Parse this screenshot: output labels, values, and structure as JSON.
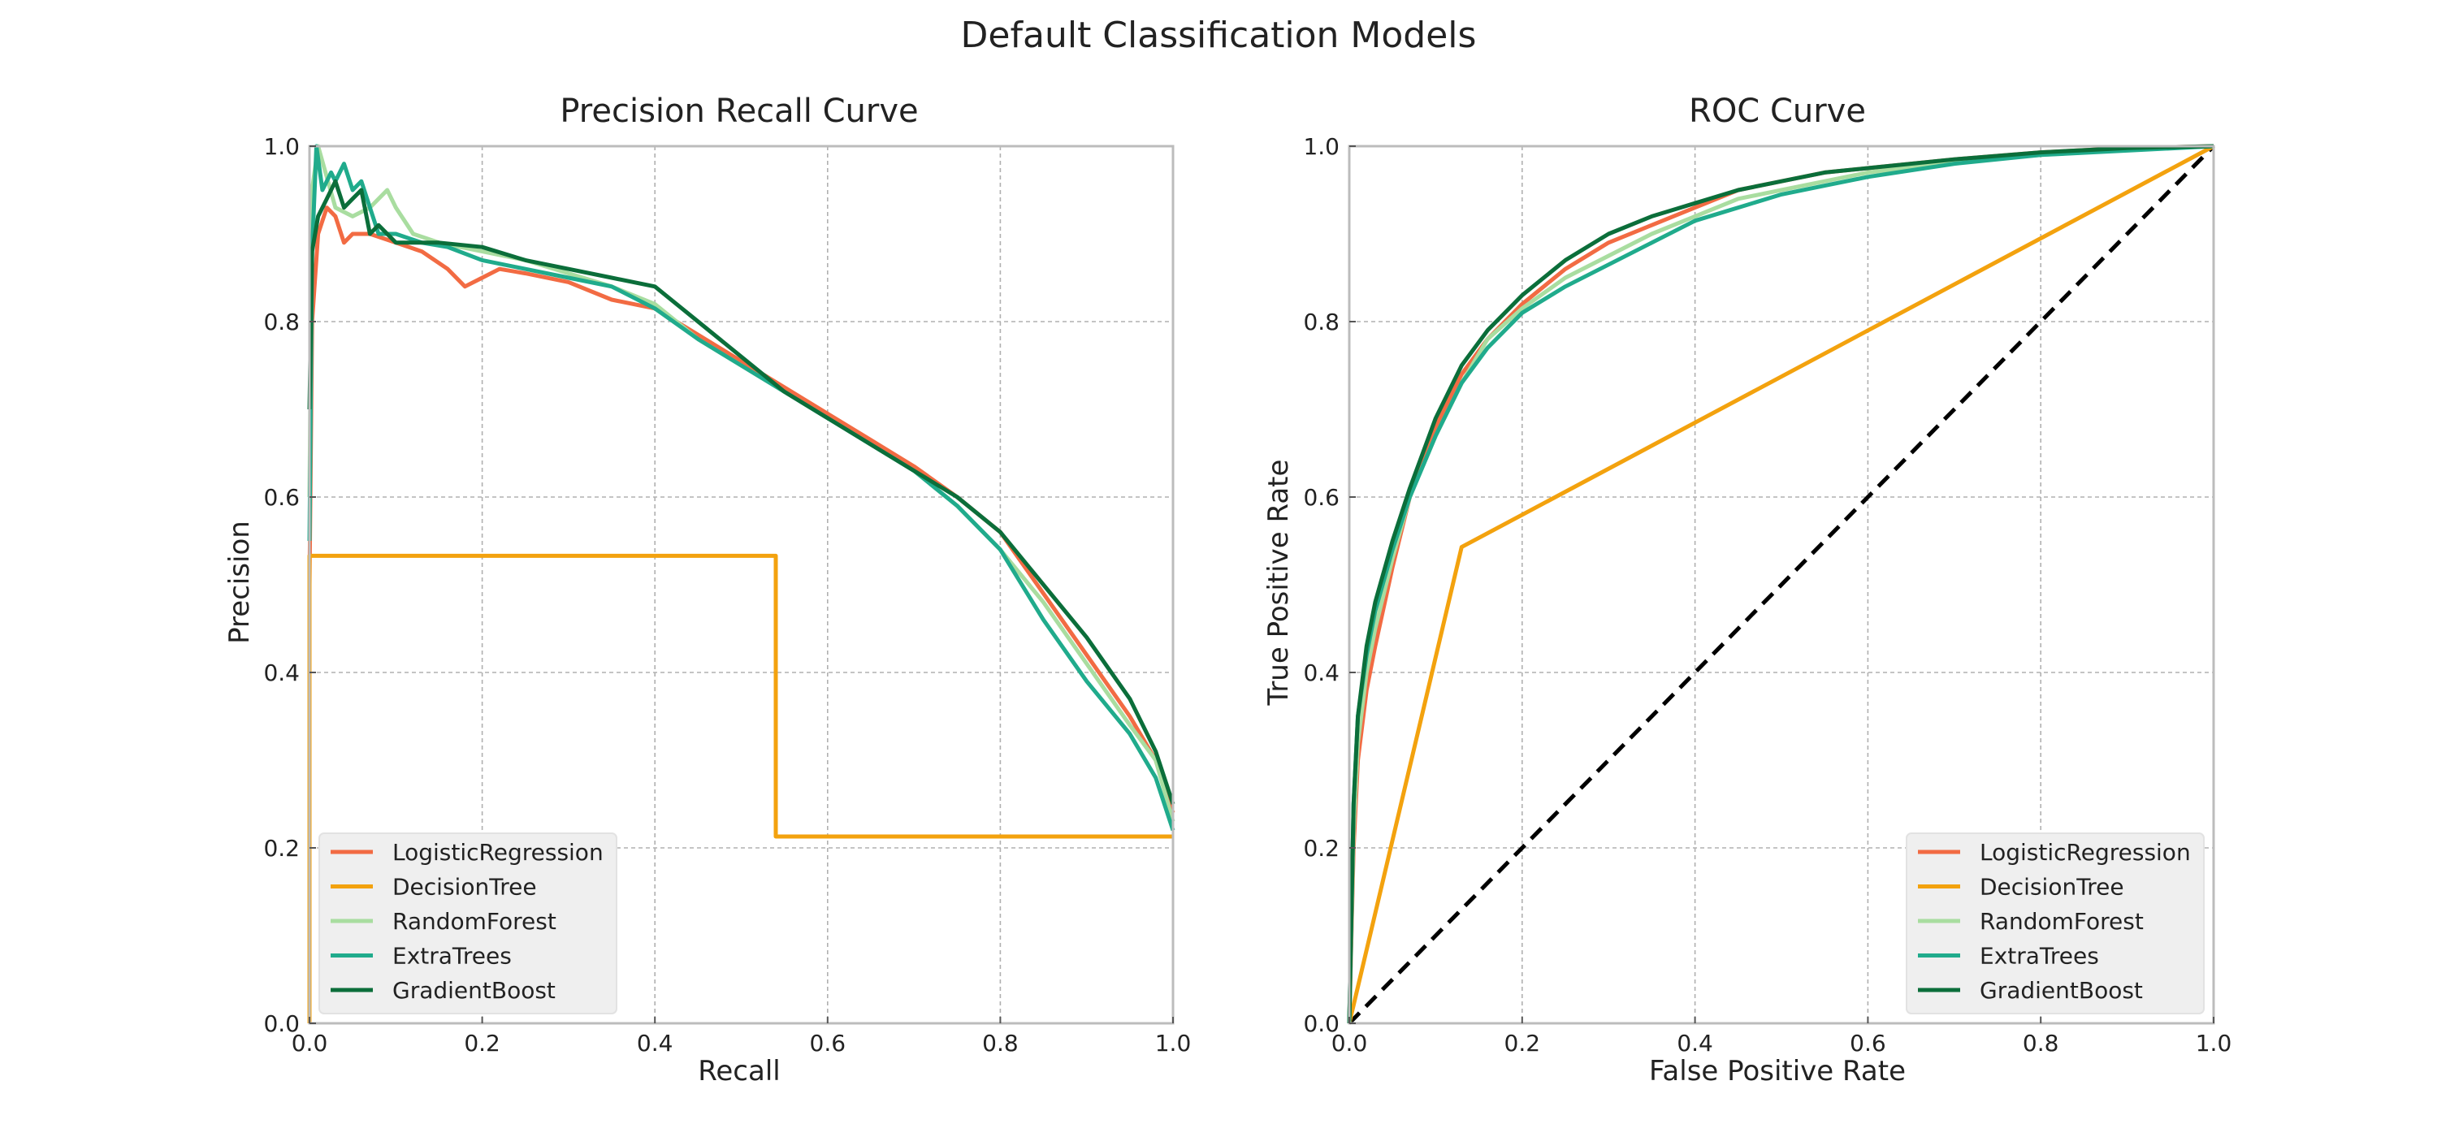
{
  "figure": {
    "title": "Default Classification Models"
  },
  "colors": {
    "LogisticRegression": "#f26b43",
    "DecisionTree": "#f3a20e",
    "RandomForest": "#a9dda0",
    "ExtraTrees": "#20ab8c",
    "GradientBoost": "#0b6e3a",
    "chance": "#000000"
  },
  "chart_data": [
    {
      "type": "line",
      "title": "Precision Recall Curve",
      "xlabel": "Recall",
      "ylabel": "Precision",
      "xlim": [
        0,
        1
      ],
      "ylim": [
        0,
        1
      ],
      "xticks": [
        "0.0",
        "0.2",
        "0.4",
        "0.6",
        "0.8",
        "1.0"
      ],
      "yticks": [
        "0.0",
        "0.2",
        "0.4",
        "0.6",
        "0.8",
        "1.0"
      ],
      "grid": true,
      "legend_position": "bottom-left",
      "series": [
        {
          "name": "LogisticRegression",
          "x": [
            0,
            0.003,
            0.01,
            0.02,
            0.03,
            0.04,
            0.05,
            0.07,
            0.1,
            0.13,
            0.16,
            0.18,
            0.2,
            0.22,
            0.25,
            0.3,
            0.35,
            0.4,
            0.45,
            0.5,
            0.55,
            0.6,
            0.65,
            0.7,
            0.75,
            0.8,
            0.85,
            0.9,
            0.95,
            0.98,
            1.0
          ],
          "y": [
            0.5,
            0.8,
            0.9,
            0.93,
            0.92,
            0.89,
            0.9,
            0.9,
            0.89,
            0.88,
            0.86,
            0.84,
            0.85,
            0.86,
            0.855,
            0.845,
            0.825,
            0.815,
            0.785,
            0.755,
            0.725,
            0.695,
            0.665,
            0.635,
            0.6,
            0.56,
            0.49,
            0.42,
            0.35,
            0.3,
            0.24
          ]
        },
        {
          "name": "DecisionTree",
          "x": [
            0,
            0,
            0.54,
            0.54,
            1.0,
            1.0
          ],
          "y": [
            0.0,
            0.533,
            0.533,
            0.213,
            0.213,
            0.213
          ]
        },
        {
          "name": "RandomForest",
          "x": [
            0,
            0.003,
            0.01,
            0.03,
            0.05,
            0.07,
            0.09,
            0.1,
            0.12,
            0.15,
            0.2,
            0.25,
            0.3,
            0.35,
            0.4,
            0.45,
            0.5,
            0.55,
            0.6,
            0.65,
            0.7,
            0.75,
            0.8,
            0.85,
            0.9,
            0.95,
            0.98,
            1.0
          ],
          "y": [
            0.6,
            0.95,
            1.0,
            0.93,
            0.92,
            0.93,
            0.95,
            0.93,
            0.9,
            0.89,
            0.88,
            0.87,
            0.855,
            0.84,
            0.82,
            0.78,
            0.75,
            0.72,
            0.69,
            0.66,
            0.63,
            0.59,
            0.54,
            0.48,
            0.41,
            0.34,
            0.3,
            0.23
          ]
        },
        {
          "name": "ExtraTrees",
          "x": [
            0,
            0.003,
            0.008,
            0.015,
            0.025,
            0.03,
            0.04,
            0.05,
            0.06,
            0.08,
            0.1,
            0.13,
            0.16,
            0.2,
            0.25,
            0.3,
            0.35,
            0.4,
            0.45,
            0.5,
            0.55,
            0.6,
            0.65,
            0.7,
            0.75,
            0.8,
            0.85,
            0.9,
            0.95,
            0.98,
            1.0
          ],
          "y": [
            0.55,
            0.88,
            1.0,
            0.95,
            0.97,
            0.96,
            0.98,
            0.95,
            0.96,
            0.9,
            0.9,
            0.89,
            0.885,
            0.87,
            0.86,
            0.85,
            0.84,
            0.815,
            0.78,
            0.75,
            0.72,
            0.69,
            0.66,
            0.63,
            0.59,
            0.54,
            0.46,
            0.39,
            0.33,
            0.28,
            0.22
          ]
        },
        {
          "name": "GradientBoost",
          "x": [
            0,
            0.003,
            0.01,
            0.02,
            0.03,
            0.04,
            0.05,
            0.06,
            0.07,
            0.08,
            0.1,
            0.15,
            0.2,
            0.25,
            0.3,
            0.35,
            0.4,
            0.45,
            0.5,
            0.55,
            0.6,
            0.65,
            0.7,
            0.75,
            0.8,
            0.85,
            0.9,
            0.95,
            0.98,
            1.0
          ],
          "y": [
            0.7,
            0.88,
            0.92,
            0.94,
            0.96,
            0.93,
            0.94,
            0.95,
            0.9,
            0.91,
            0.89,
            0.89,
            0.885,
            0.87,
            0.86,
            0.85,
            0.84,
            0.8,
            0.76,
            0.72,
            0.69,
            0.66,
            0.63,
            0.6,
            0.56,
            0.5,
            0.44,
            0.37,
            0.31,
            0.25
          ]
        }
      ]
    },
    {
      "type": "line",
      "title": "ROC Curve",
      "xlabel": "False Positive Rate",
      "ylabel": "True Positive Rate",
      "xlim": [
        0,
        1
      ],
      "ylim": [
        0,
        1
      ],
      "xticks": [
        "0.0",
        "0.2",
        "0.4",
        "0.6",
        "0.8",
        "1.0"
      ],
      "yticks": [
        "0.0",
        "0.2",
        "0.4",
        "0.6",
        "0.8",
        "1.0"
      ],
      "grid": true,
      "legend_position": "bottom-right",
      "series": [
        {
          "name": "LogisticRegression",
          "x": [
            0,
            0.005,
            0.01,
            0.02,
            0.03,
            0.05,
            0.07,
            0.1,
            0.13,
            0.16,
            0.2,
            0.25,
            0.3,
            0.35,
            0.4,
            0.45,
            0.5,
            0.55,
            0.6,
            0.7,
            0.8,
            0.9,
            1.0
          ],
          "y": [
            0,
            0.2,
            0.3,
            0.38,
            0.43,
            0.52,
            0.6,
            0.68,
            0.74,
            0.78,
            0.82,
            0.86,
            0.89,
            0.91,
            0.93,
            0.95,
            0.96,
            0.97,
            0.975,
            0.985,
            0.993,
            0.998,
            1.0
          ]
        },
        {
          "name": "DecisionTree",
          "x": [
            0,
            0.13,
            1.0
          ],
          "y": [
            0,
            0.543,
            1.0
          ]
        },
        {
          "name": "RandomForest",
          "x": [
            0,
            0.005,
            0.01,
            0.02,
            0.03,
            0.05,
            0.07,
            0.1,
            0.13,
            0.16,
            0.2,
            0.25,
            0.3,
            0.35,
            0.4,
            0.45,
            0.5,
            0.55,
            0.6,
            0.7,
            0.8,
            0.9,
            1.0
          ],
          "y": [
            0,
            0.22,
            0.32,
            0.4,
            0.45,
            0.53,
            0.6,
            0.67,
            0.73,
            0.78,
            0.815,
            0.85,
            0.875,
            0.9,
            0.92,
            0.94,
            0.95,
            0.96,
            0.97,
            0.982,
            0.99,
            0.996,
            1.0
          ]
        },
        {
          "name": "ExtraTrees",
          "x": [
            0,
            0.005,
            0.01,
            0.02,
            0.03,
            0.05,
            0.07,
            0.1,
            0.13,
            0.16,
            0.2,
            0.25,
            0.3,
            0.35,
            0.4,
            0.45,
            0.5,
            0.55,
            0.6,
            0.7,
            0.8,
            0.9,
            1.0
          ],
          "y": [
            0,
            0.25,
            0.35,
            0.42,
            0.47,
            0.54,
            0.6,
            0.67,
            0.73,
            0.77,
            0.81,
            0.84,
            0.865,
            0.89,
            0.915,
            0.93,
            0.945,
            0.955,
            0.965,
            0.98,
            0.99,
            0.995,
            1.0
          ]
        },
        {
          "name": "GradientBoost",
          "x": [
            0,
            0.005,
            0.01,
            0.02,
            0.03,
            0.05,
            0.07,
            0.1,
            0.13,
            0.16,
            0.2,
            0.25,
            0.3,
            0.35,
            0.4,
            0.45,
            0.5,
            0.55,
            0.6,
            0.7,
            0.8,
            0.9,
            1.0
          ],
          "y": [
            0,
            0.25,
            0.35,
            0.43,
            0.48,
            0.55,
            0.61,
            0.69,
            0.75,
            0.79,
            0.83,
            0.87,
            0.9,
            0.92,
            0.935,
            0.95,
            0.96,
            0.97,
            0.975,
            0.985,
            0.993,
            0.998,
            1.0
          ]
        }
      ],
      "reference_line": {
        "x": [
          0,
          1
        ],
        "y": [
          0,
          1
        ],
        "style": "dashed"
      }
    }
  ]
}
